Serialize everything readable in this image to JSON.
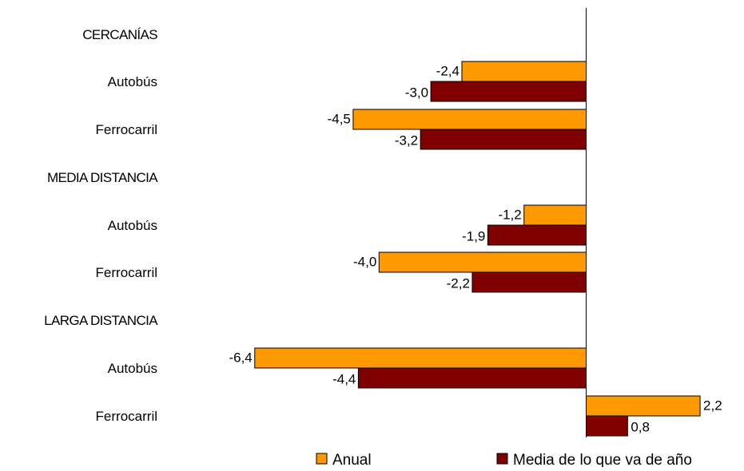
{
  "chart_data": {
    "type": "bar",
    "orientation": "horizontal",
    "categories": [
      "CERCANÍAS",
      "Autobús",
      "Ferrocarril",
      "MEDIA DISTANCIA",
      "Autobús",
      "Ferrocarril",
      "LARGA DISTANCIA",
      "Autobús",
      "Ferrocarril"
    ],
    "series": [
      {
        "name": "Anual",
        "color": "#FF9900",
        "values": [
          null,
          -2.4,
          -4.5,
          null,
          -1.2,
          -4.0,
          null,
          -6.4,
          2.2
        ],
        "labels": [
          "",
          "-2,4",
          "-4,5",
          "",
          "-1,2",
          "-4,0",
          "",
          "-6,4",
          "2,2"
        ]
      },
      {
        "name": "Media de lo que va de año",
        "color": "#800000",
        "values": [
          null,
          -3.0,
          -3.2,
          null,
          -1.9,
          -2.2,
          null,
          -4.4,
          0.8
        ],
        "labels": [
          "",
          "-3,0",
          "-3,2",
          "",
          "-1,9",
          "-2,2",
          "",
          "-4,4",
          "0,8"
        ]
      }
    ],
    "xlim": [
      -7,
      3
    ],
    "legend_position": "bottom-right",
    "grid": false
  }
}
